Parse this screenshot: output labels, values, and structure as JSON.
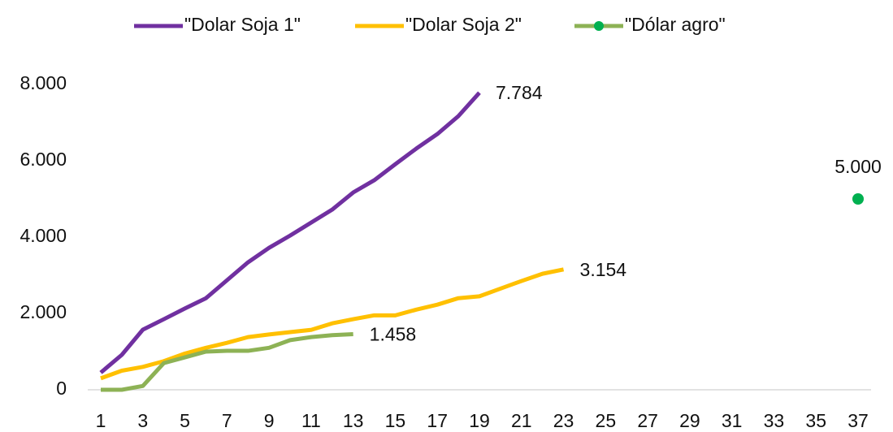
{
  "chart_data": {
    "type": "line",
    "categories": [
      1,
      null,
      3,
      null,
      5,
      null,
      7,
      null,
      9,
      null,
      11,
      null,
      13,
      null,
      15,
      null,
      17,
      null,
      19,
      null,
      21,
      null,
      23,
      null,
      25,
      null,
      27,
      null,
      29,
      null,
      31,
      null,
      33,
      null,
      35,
      null,
      37
    ],
    "series": [
      {
        "name": "\"Dolar Soja 1\"",
        "color": "#7030a0",
        "values": [
          450,
          915,
          1575,
          1850,
          2130,
          2400,
          2870,
          3340,
          3720,
          4040,
          4380,
          4720,
          5170,
          5490,
          5910,
          6320,
          6700,
          7170,
          7784,
          null,
          null,
          null,
          null,
          null,
          null,
          null,
          null,
          null,
          null,
          null,
          null,
          null,
          null,
          null,
          null,
          null,
          null
        ],
        "value_labels": [
          null,
          null,
          null,
          null,
          null,
          null,
          null,
          null,
          null,
          null,
          null,
          null,
          null,
          null,
          null,
          null,
          null,
          null,
          "7.784",
          null,
          null,
          null,
          null,
          null,
          null,
          null,
          null,
          null,
          null,
          null,
          null,
          null,
          null,
          null,
          null,
          null,
          null
        ]
      },
      {
        "name": "\"Dolar Soja 2\"",
        "color": "#ffc000",
        "values": [
          300,
          500,
          600,
          750,
          950,
          1100,
          1230,
          1380,
          1450,
          1510,
          1570,
          1740,
          1850,
          1950,
          1950,
          2100,
          2230,
          2400,
          2450,
          2650,
          2850,
          3040,
          3154,
          null,
          null,
          null,
          null,
          null,
          null,
          null,
          null,
          null,
          null,
          null,
          null,
          null,
          null
        ],
        "value_labels": [
          null,
          null,
          null,
          null,
          null,
          null,
          null,
          null,
          null,
          null,
          null,
          null,
          null,
          null,
          null,
          null,
          null,
          null,
          null,
          null,
          null,
          null,
          "3.154",
          null,
          null,
          null,
          null,
          null,
          null,
          null,
          null,
          null,
          null,
          null,
          null,
          null,
          null
        ]
      },
      {
        "name": "\"Dólar agro\"",
        "color": "#8db255",
        "marker_color": "#00b050",
        "values": [
          0,
          0,
          100,
          700,
          850,
          1000,
          1020,
          1020,
          1100,
          1300,
          1380,
          1430,
          1458,
          null,
          null,
          null,
          null,
          null,
          null,
          null,
          null,
          null,
          null,
          null,
          null,
          null,
          null,
          null,
          null,
          null,
          null,
          null,
          null,
          null,
          null,
          null,
          5000
        ],
        "value_labels": [
          null,
          null,
          null,
          null,
          null,
          null,
          null,
          null,
          null,
          null,
          null,
          null,
          "1.458",
          null,
          null,
          null,
          null,
          null,
          null,
          null,
          null,
          null,
          null,
          null,
          null,
          null,
          null,
          null,
          null,
          null,
          null,
          null,
          null,
          null,
          null,
          null,
          "5.000"
        ]
      }
    ],
    "ylim": [
      0,
      8000
    ],
    "yticks": [
      0,
      {
        "value": 2000,
        "label": "2.000"
      },
      {
        "value": 4000,
        "label": "4.000"
      },
      {
        "value": 6000,
        "label": "6.000"
      },
      {
        "value": 8000,
        "label": "8.000"
      }
    ],
    "legend": "top"
  }
}
